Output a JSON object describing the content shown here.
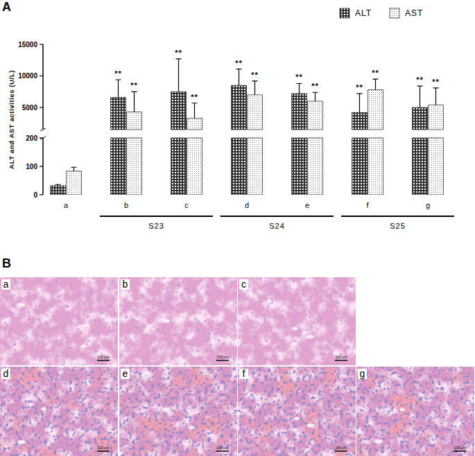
{
  "chart_data": {
    "type": "bar",
    "panel_label": "A",
    "y_label": "ALT and AST activities (U/L)",
    "categories": [
      "a",
      "b",
      "c",
      "d",
      "e",
      "f",
      "g"
    ],
    "groups": [
      {
        "label": "S23",
        "categories": [
          "b",
          "c"
        ]
      },
      {
        "label": "S24",
        "categories": [
          "d",
          "e"
        ]
      },
      {
        "label": "S25",
        "categories": [
          "f",
          "g"
        ]
      }
    ],
    "series": [
      {
        "name": "ALT",
        "color": "#333333",
        "values": [
          32,
          6600,
          7500,
          8500,
          7200,
          4200,
          5000
        ],
        "errors": [
          4,
          2800,
          5200,
          2600,
          1600,
          3000,
          3400
        ],
        "significance": [
          null,
          "**",
          "**",
          "**",
          "**",
          "**",
          "**"
        ]
      },
      {
        "name": "AST",
        "color": "#777777",
        "values": [
          83,
          4300,
          3300,
          7000,
          6000,
          7800,
          5400
        ],
        "errors": [
          14,
          3200,
          2400,
          2200,
          1400,
          1700,
          2700
        ],
        "significance": [
          null,
          "**",
          "**",
          "**",
          "**",
          "**",
          "**"
        ]
      }
    ],
    "ylim": [
      0,
      15000
    ],
    "axis_break": [
      200,
      1500
    ],
    "yticks": [
      0,
      100,
      200,
      5000,
      10000,
      15000
    ],
    "legend": "top-right",
    "grid": false
  },
  "histology": {
    "panel_label": "B",
    "images": [
      {
        "label": "a",
        "scale_bar": "100 μm"
      },
      {
        "label": "b",
        "scale_bar": "100 μm"
      },
      {
        "label": "c",
        "scale_bar": "100 μm"
      },
      {
        "label": "d",
        "scale_bar": "100 μm"
      },
      {
        "label": "e",
        "scale_bar": "100 μm"
      },
      {
        "label": "f",
        "scale_bar": "100 μm"
      },
      {
        "label": "g",
        "scale_bar": "100 μm"
      }
    ]
  }
}
